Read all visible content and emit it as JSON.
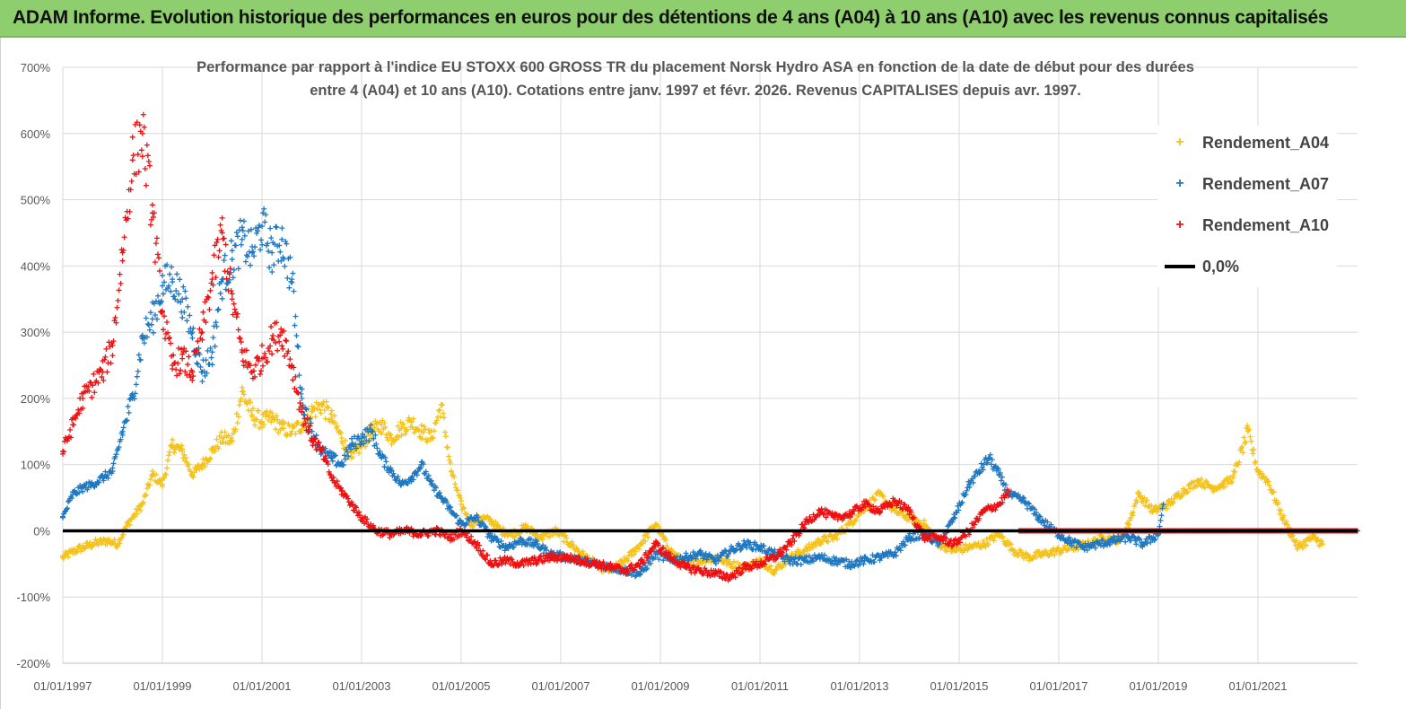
{
  "banner": {
    "title": "ADAM Informe. Evolution historique des performances en euros pour des détentions de 4 ans (A04) à 10 ans (A10) avec les revenus connus capitalisés"
  },
  "chart_data": {
    "type": "scatter",
    "title_line1": "Performance par rapport à l'indice EU STOXX 600 GROSS TR  du placement Norsk Hydro ASA en fonction de la date de début pour des durées",
    "title_line2": "entre 4 (A04) et 10 ans (A10). Cotations entre janv. 1997 et févr. 2026. Revenus CAPITALISES depuis avr. 1997.",
    "ylim": [
      -200,
      700
    ],
    "yticks": [
      "700%",
      "600%",
      "500%",
      "400%",
      "300%",
      "200%",
      "100%",
      "0%",
      "-100%",
      "-200%"
    ],
    "ytick_values": [
      700,
      600,
      500,
      400,
      300,
      200,
      100,
      0,
      -100,
      -200
    ],
    "xlim": [
      1997.0,
      2023.0
    ],
    "xticks": [
      "01/01/1997",
      "01/01/1999",
      "01/01/2001",
      "01/01/2003",
      "01/01/2005",
      "01/01/2007",
      "01/01/2009",
      "01/01/2011",
      "01/01/2013",
      "01/01/2015",
      "01/01/2017",
      "01/01/2019",
      "01/01/2021"
    ],
    "xtick_values": [
      1997,
      1999,
      2001,
      2003,
      2005,
      2007,
      2009,
      2011,
      2013,
      2015,
      2017,
      2019,
      2021
    ],
    "legend": [
      {
        "name": "Rendement_A04",
        "color": "#f5c21a",
        "marker": "+"
      },
      {
        "name": "Rendement_A07",
        "color": "#1f78c1",
        "marker": "+"
      },
      {
        "name": "Rendement_A10",
        "color": "#ee1111",
        "marker": "+"
      },
      {
        "name": "0,0%",
        "color": "#000000",
        "marker": "line"
      }
    ],
    "series": [
      {
        "name": "Rendement_A04",
        "color": "#f5c21a",
        "x": [
          1997.0,
          1997.3,
          1997.6,
          1997.9,
          1998.1,
          1998.3,
          1998.6,
          1998.8,
          1999.0,
          1999.2,
          1999.4,
          1999.6,
          1999.8,
          2000.0,
          2000.2,
          2000.4,
          2000.6,
          2000.8,
          2001.0,
          2001.2,
          2001.4,
          2001.6,
          2001.8,
          2002.0,
          2002.2,
          2002.4,
          2002.6,
          2002.8,
          2003.0,
          2003.2,
          2003.4,
          2003.6,
          2003.8,
          2004.0,
          2004.2,
          2004.4,
          2004.6,
          2004.8,
          2005.0,
          2005.2,
          2005.4,
          2005.6,
          2005.8,
          2006.0,
          2006.3,
          2006.6,
          2006.9,
          2007.2,
          2007.5,
          2007.8,
          2008.0,
          2008.3,
          2008.6,
          2008.9,
          2009.2,
          2009.5,
          2009.8,
          2010.1,
          2010.4,
          2010.7,
          2011.0,
          2011.3,
          2011.6,
          2011.9,
          2012.2,
          2012.5,
          2012.8,
          2013.1,
          2013.4,
          2013.7,
          2014.0,
          2014.3,
          2014.6,
          2014.9,
          2015.2,
          2015.5,
          2015.8,
          2016.1,
          2016.4,
          2016.7,
          2017.0,
          2017.3,
          2017.6,
          2017.9,
          2018.2,
          2018.4,
          2018.6,
          2018.9,
          2019.2,
          2019.5,
          2019.8,
          2020.1,
          2020.3,
          2020.5,
          2020.8,
          2021.0,
          2021.2,
          2021.5,
          2021.8,
          2022.1,
          2022.3
        ],
        "y": [
          -40,
          -28,
          -20,
          -15,
          -20,
          10,
          40,
          85,
          70,
          130,
          120,
          85,
          100,
          120,
          140,
          135,
          210,
          175,
          165,
          170,
          155,
          150,
          160,
          180,
          190,
          170,
          140,
          110,
          130,
          150,
          160,
          140,
          155,
          165,
          150,
          140,
          190,
          90,
          40,
          10,
          20,
          15,
          0,
          -5,
          5,
          -10,
          0,
          -20,
          -40,
          -55,
          -60,
          -45,
          -20,
          10,
          -30,
          -50,
          -45,
          -40,
          -50,
          -55,
          -45,
          -60,
          -40,
          -30,
          -15,
          -10,
          10,
          35,
          55,
          30,
          20,
          10,
          -20,
          -30,
          -25,
          -20,
          -5,
          -30,
          -40,
          -35,
          -30,
          -25,
          -20,
          -10,
          -15,
          10,
          55,
          30,
          40,
          60,
          75,
          65,
          70,
          80,
          150,
          90,
          75,
          20,
          -25,
          -10,
          -20
        ]
      },
      {
        "name": "Rendement_A07",
        "color": "#1f78c1",
        "x": [
          1997.0,
          1997.2,
          1997.4,
          1997.6,
          1997.8,
          1998.0,
          1998.2,
          1998.4,
          1998.6,
          1998.8,
          1999.0,
          1999.2,
          1999.4,
          1999.6,
          1999.8,
          2000.0,
          2000.2,
          2000.4,
          2000.6,
          2000.8,
          2001.0,
          2001.2,
          2001.4,
          2001.6,
          2001.8,
          2002.0,
          2002.2,
          2002.4,
          2002.6,
          2002.8,
          2003.0,
          2003.2,
          2003.4,
          2003.6,
          2003.8,
          2004.0,
          2004.2,
          2004.4,
          2004.6,
          2004.8,
          2005.0,
          2005.3,
          2005.6,
          2005.9,
          2006.2,
          2006.5,
          2006.8,
          2007.1,
          2007.4,
          2007.7,
          2008.0,
          2008.3,
          2008.6,
          2008.9,
          2009.2,
          2009.5,
          2009.8,
          2010.1,
          2010.4,
          2010.7,
          2011.0,
          2011.3,
          2011.6,
          2011.9,
          2012.2,
          2012.5,
          2012.8,
          2013.1,
          2013.4,
          2013.7,
          2014.0,
          2014.3,
          2014.6,
          2014.9,
          2015.2,
          2015.4,
          2015.6,
          2015.8,
          2016.0,
          2016.3,
          2016.6,
          2016.9,
          2017.2,
          2017.5,
          2017.8,
          2018.1,
          2018.4,
          2018.7,
          2019.0,
          2019.1
        ],
        "y": [
          20,
          55,
          65,
          70,
          80,
          90,
          150,
          200,
          290,
          320,
          370,
          380,
          350,
          300,
          240,
          270,
          380,
          410,
          440,
          420,
          460,
          420,
          440,
          380,
          200,
          150,
          120,
          110,
          100,
          130,
          140,
          150,
          110,
          90,
          70,
          80,
          100,
          70,
          50,
          30,
          10,
          20,
          -10,
          -25,
          -15,
          -20,
          -35,
          -40,
          -45,
          -50,
          -55,
          -60,
          -65,
          -35,
          -45,
          -40,
          -35,
          -45,
          -30,
          -20,
          -25,
          -35,
          -45,
          -45,
          -40,
          -45,
          -50,
          -45,
          -40,
          -35,
          -10,
          -5,
          -20,
          20,
          70,
          90,
          110,
          85,
          55,
          45,
          20,
          0,
          -15,
          -25,
          -20,
          -15,
          -10,
          -20,
          -5,
          40
        ]
      },
      {
        "name": "Rendement_A10",
        "color": "#ee1111",
        "x": [
          1997.0,
          1997.2,
          1997.4,
          1997.6,
          1997.8,
          1998.0,
          1998.2,
          1998.4,
          1998.6,
          1998.8,
          1999.0,
          1999.2,
          1999.4,
          1999.6,
          1999.8,
          2000.0,
          2000.2,
          2000.4,
          2000.6,
          2000.8,
          2001.0,
          2001.2,
          2001.4,
          2001.6,
          2001.8,
          2002.0,
          2002.2,
          2002.4,
          2002.6,
          2002.8,
          2003.0,
          2003.3,
          2003.6,
          2003.9,
          2004.2,
          2004.5,
          2004.8,
          2005.0,
          2005.3,
          2005.6,
          2005.9,
          2006.2,
          2006.5,
          2006.8,
          2007.1,
          2007.4,
          2007.7,
          2008.0,
          2008.3,
          2008.6,
          2008.9,
          2009.2,
          2009.5,
          2009.8,
          2010.1,
          2010.4,
          2010.7,
          2011.0,
          2011.3,
          2011.6,
          2011.9,
          2012.2,
          2012.5,
          2012.8,
          2013.1,
          2013.4,
          2013.7,
          2014.0,
          2014.3,
          2014.6,
          2014.9,
          2015.2,
          2015.5,
          2015.8,
          2016.0
        ],
        "y": [
          120,
          160,
          200,
          220,
          240,
          280,
          420,
          560,
          600,
          480,
          330,
          250,
          260,
          240,
          300,
          380,
          450,
          350,
          270,
          240,
          260,
          290,
          300,
          250,
          180,
          140,
          120,
          80,
          60,
          40,
          20,
          0,
          -5,
          0,
          -5,
          0,
          -10,
          0,
          -20,
          -50,
          -45,
          -50,
          -45,
          -40,
          -40,
          -45,
          -50,
          -55,
          -60,
          -50,
          -20,
          -40,
          -55,
          -60,
          -65,
          -70,
          -55,
          -50,
          -40,
          -20,
          10,
          30,
          20,
          25,
          40,
          30,
          45,
          30,
          -10,
          -10,
          -20,
          0,
          30,
          40,
          60
        ]
      },
      {
        "name": "Rendement_A10_tail",
        "color": "#ee1111",
        "x_range": [
          2016.2,
          2023.0
        ],
        "y_constant": 0
      }
    ]
  }
}
